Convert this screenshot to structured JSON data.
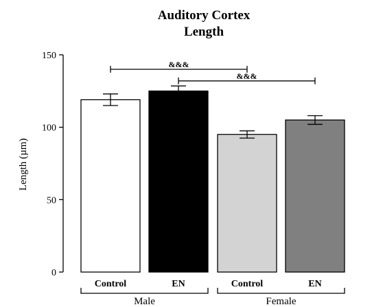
{
  "chart_data": {
    "type": "bar",
    "title_lines": [
      "Auditory Cortex",
      "Length"
    ],
    "ylabel": "Length (µm)",
    "ylim": [
      0,
      150
    ],
    "yticks": [
      0,
      50,
      100,
      150
    ],
    "grid": false,
    "categories": [
      "Control",
      "EN",
      "Control",
      "EN"
    ],
    "groups": [
      {
        "label": "Male",
        "bars": [
          0,
          1
        ]
      },
      {
        "label": "Female",
        "bars": [
          2,
          3
        ]
      }
    ],
    "values": [
      119,
      125,
      95,
      105
    ],
    "errors": [
      4,
      3.5,
      2.5,
      3
    ],
    "bar_colors": [
      "#ffffff",
      "#000000",
      "#d3d3d3",
      "#808080"
    ],
    "significance": [
      {
        "label": "&&&",
        "from": 0,
        "to": 2,
        "y": 140
      },
      {
        "label": "&&&",
        "from": 1,
        "to": 3,
        "y": 132
      }
    ]
  }
}
